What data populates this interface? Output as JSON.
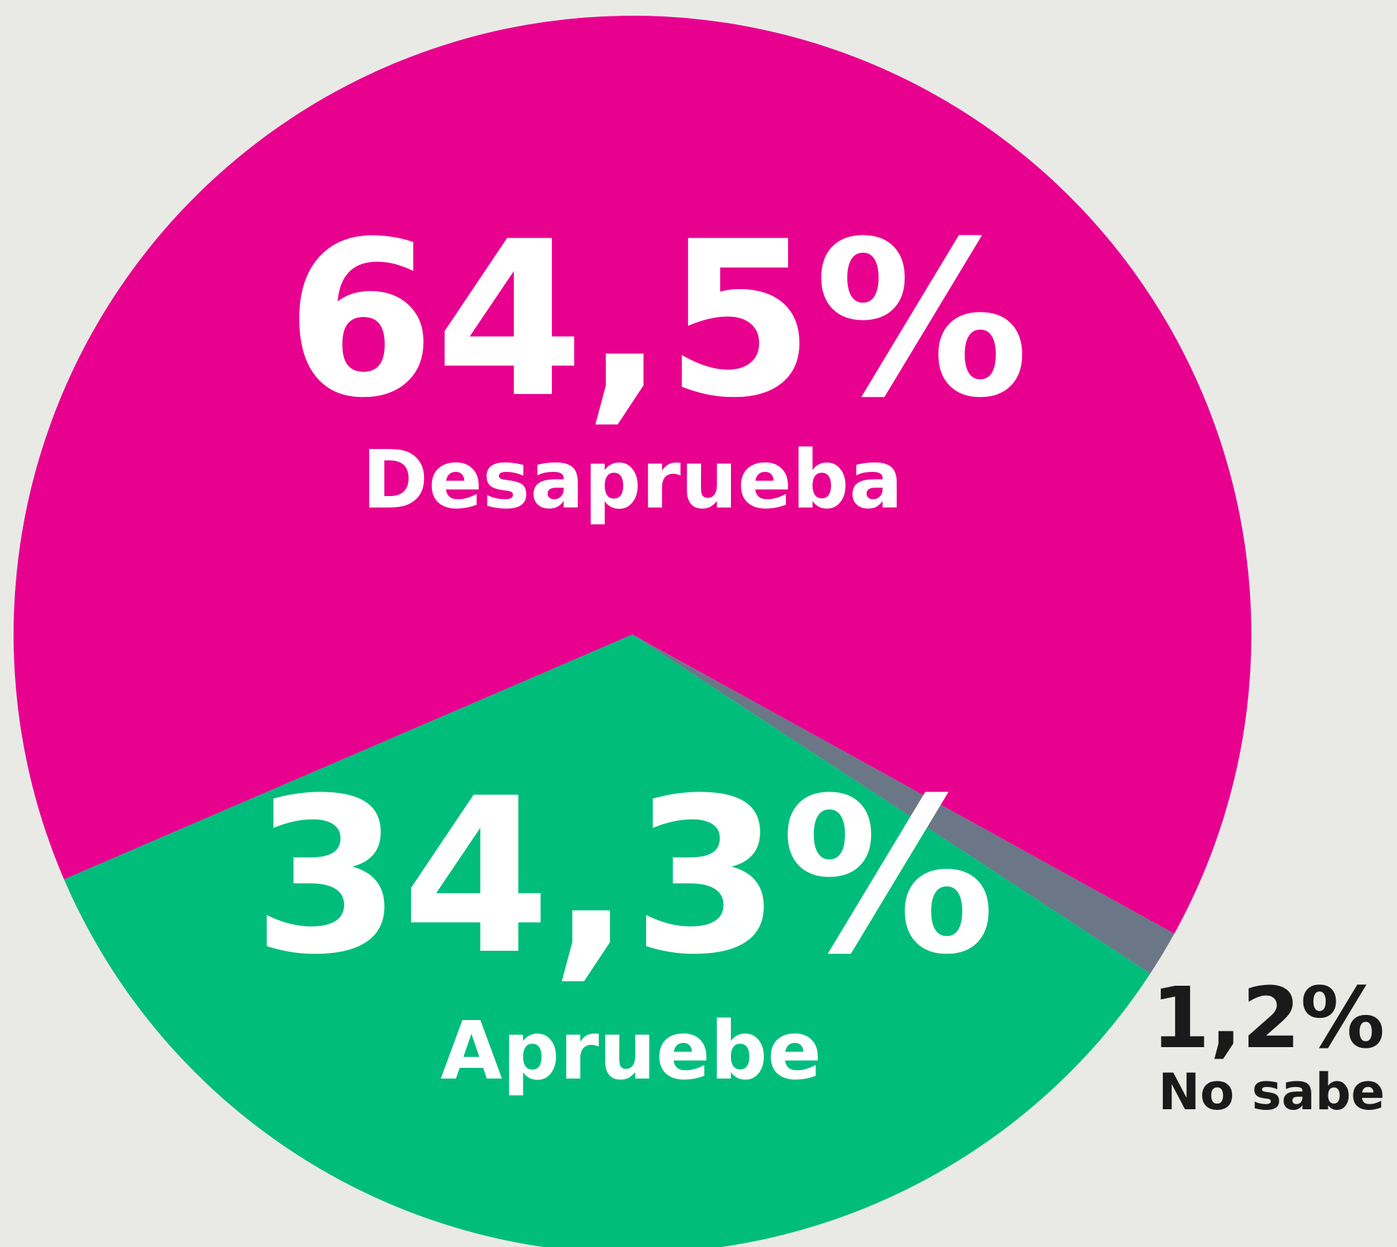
{
  "chart_data": {
    "type": "pie",
    "categories": [
      "Desaprueba",
      "No sabe",
      "Apruebe"
    ],
    "values": [
      64.5,
      1.2,
      34.3
    ],
    "value_labels": [
      "64,5%",
      "1,2%",
      "34,3%"
    ],
    "colors": [
      "#e8008f",
      "#6b7787",
      "#00bd7c"
    ]
  }
}
